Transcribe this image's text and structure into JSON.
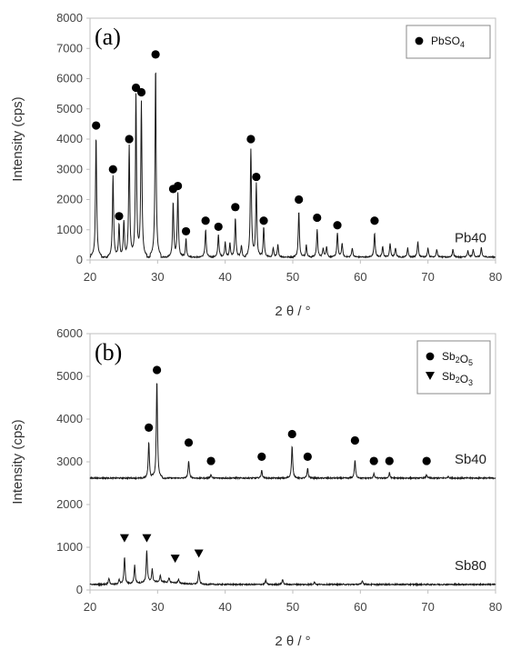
{
  "chart_data": [
    {
      "type": "line",
      "panel_label": "(a)",
      "ylabel": "Intensity (cps)",
      "xlabel": "2 θ / °",
      "xlim": [
        20,
        80
      ],
      "ylim": [
        0,
        8000
      ],
      "xticks": [
        20,
        30,
        40,
        50,
        60,
        70,
        80
      ],
      "yticks": [
        0,
        1000,
        2000,
        3000,
        4000,
        5000,
        6000,
        7000,
        8000
      ],
      "legend": {
        "position": "top-right",
        "entries": [
          {
            "marker": "circle",
            "label": "PbSO4"
          }
        ]
      },
      "series": [
        {
          "label": "Pb40",
          "baseline": 100,
          "peaks": [
            [
              20.9,
              4000
            ],
            [
              23.4,
              2700
            ],
            [
              24.3,
              1100
            ],
            [
              25.0,
              1200
            ],
            [
              25.8,
              3700
            ],
            [
              26.8,
              5400
            ],
            [
              27.6,
              5100
            ],
            [
              29.7,
              6300
            ],
            [
              32.3,
              1800
            ],
            [
              33.0,
              2100
            ],
            [
              34.2,
              600
            ],
            [
              37.1,
              900
            ],
            [
              39.0,
              750
            ],
            [
              40.0,
              500
            ],
            [
              40.7,
              450
            ],
            [
              41.5,
              1300
            ],
            [
              42.4,
              400
            ],
            [
              43.8,
              3600
            ],
            [
              44.6,
              2400
            ],
            [
              45.7,
              1000
            ],
            [
              47.1,
              300
            ],
            [
              47.8,
              400
            ],
            [
              50.9,
              1500
            ],
            [
              52.0,
              400
            ],
            [
              53.6,
              900
            ],
            [
              54.5,
              300
            ],
            [
              55.0,
              350
            ],
            [
              56.6,
              800
            ],
            [
              57.3,
              450
            ],
            [
              58.8,
              300
            ],
            [
              62.1,
              800
            ],
            [
              63.3,
              350
            ],
            [
              64.4,
              450
            ],
            [
              65.2,
              300
            ],
            [
              67.0,
              300
            ],
            [
              68.5,
              500
            ],
            [
              70.0,
              300
            ],
            [
              71.3,
              250
            ],
            [
              73.7,
              250
            ],
            [
              75.9,
              200
            ],
            [
              76.7,
              250
            ],
            [
              77.9,
              300
            ]
          ]
        }
      ],
      "markers": [
        {
          "symbol": "circle",
          "points": [
            [
              20.9,
              4450
            ],
            [
              23.4,
              3000
            ],
            [
              24.3,
              1450
            ],
            [
              25.8,
              4000
            ],
            [
              26.8,
              5700
            ],
            [
              27.6,
              5550
            ],
            [
              29.7,
              6800
            ],
            [
              32.3,
              2350
            ],
            [
              33.0,
              2450
            ],
            [
              34.2,
              950
            ],
            [
              37.1,
              1300
            ],
            [
              39.0,
              1100
            ],
            [
              41.5,
              1750
            ],
            [
              43.8,
              4000
            ],
            [
              44.6,
              2750
            ],
            [
              45.7,
              1300
            ],
            [
              50.9,
              2000
            ],
            [
              53.6,
              1400
            ],
            [
              56.6,
              1150
            ],
            [
              62.1,
              1300
            ]
          ]
        }
      ]
    },
    {
      "type": "line",
      "panel_label": "(b)",
      "ylabel": "Intensity (cps)",
      "xlabel": "2 θ / °",
      "xlim": [
        20,
        80
      ],
      "ylim": [
        0,
        6000
      ],
      "xticks": [
        20,
        30,
        40,
        50,
        60,
        70,
        80
      ],
      "yticks": [
        0,
        1000,
        2000,
        3000,
        4000,
        5000,
        6000
      ],
      "legend": {
        "position": "top-right",
        "entries": [
          {
            "marker": "circle",
            "label": "Sb2O5"
          },
          {
            "marker": "triangle-down",
            "label": "Sb2O3"
          }
        ]
      },
      "series": [
        {
          "label": "Sb40",
          "baseline": 2620,
          "peaks": [
            [
              28.7,
              850
            ],
            [
              29.9,
              2300
            ],
            [
              34.6,
              400
            ],
            [
              37.9,
              80
            ],
            [
              45.4,
              180
            ],
            [
              49.9,
              750
            ],
            [
              52.2,
              230
            ],
            [
              59.2,
              420
            ],
            [
              62.0,
              100
            ],
            [
              64.3,
              120
            ],
            [
              69.8,
              80
            ],
            [
              73.0,
              40
            ]
          ]
        },
        {
          "label": "Sb80",
          "baseline": 130,
          "peaks": [
            [
              22.8,
              150
            ],
            [
              24.3,
              120
            ],
            [
              25.1,
              640
            ],
            [
              26.6,
              420
            ],
            [
              28.4,
              740
            ],
            [
              29.2,
              300
            ],
            [
              30.4,
              150
            ],
            [
              31.7,
              100
            ],
            [
              33.1,
              80
            ],
            [
              36.1,
              300
            ],
            [
              46.0,
              100
            ],
            [
              48.5,
              120
            ],
            [
              53.2,
              60
            ],
            [
              60.3,
              90
            ]
          ]
        }
      ],
      "markers": [
        {
          "symbol": "circle",
          "points": [
            [
              28.7,
              3800
            ],
            [
              29.9,
              5150
            ],
            [
              34.6,
              3450
            ],
            [
              37.9,
              3020
            ],
            [
              45.4,
              3120
            ],
            [
              49.9,
              3650
            ],
            [
              52.2,
              3120
            ],
            [
              59.2,
              3500
            ],
            [
              62.0,
              3020
            ],
            [
              64.3,
              3020
            ],
            [
              69.8,
              3020
            ]
          ]
        },
        {
          "symbol": "triangle-down",
          "points": [
            [
              25.1,
              1200
            ],
            [
              28.4,
              1200
            ],
            [
              32.6,
              720
            ],
            [
              36.1,
              840
            ]
          ]
        }
      ]
    }
  ]
}
